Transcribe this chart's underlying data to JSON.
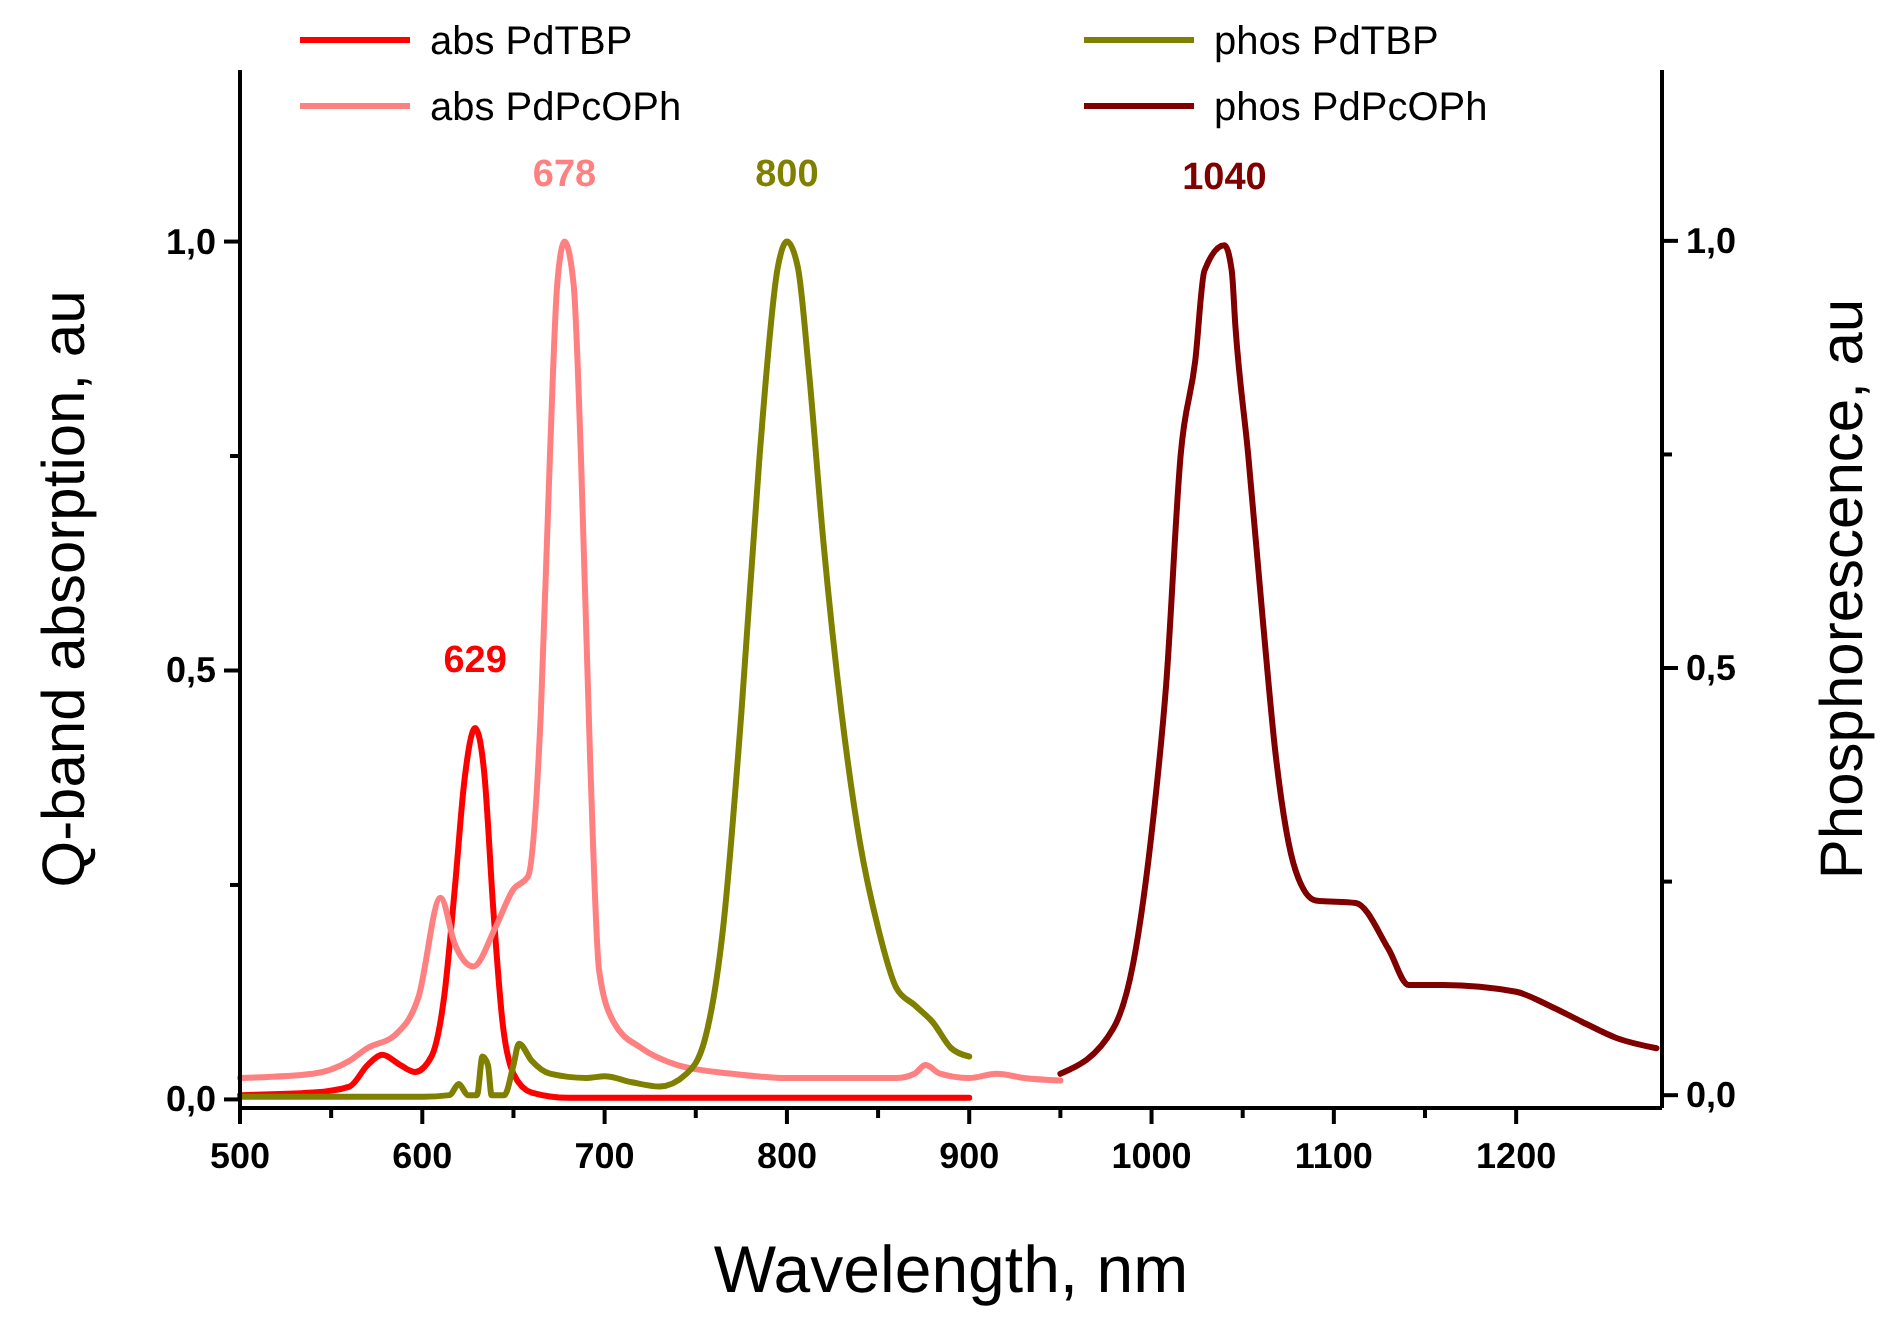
{
  "chart_data": {
    "type": "line",
    "xlabel": "Wavelength, nm",
    "ylabel": "Q-band absorption, au",
    "y2label": "Phosphorescence, au",
    "xlim": [
      500,
      1280
    ],
    "xticks": [
      500,
      600,
      700,
      800,
      900,
      1000,
      1100,
      1200
    ],
    "ylim": [
      -0.01,
      1.2
    ],
    "yticks": [
      {
        "value": 0,
        "label": "0,0"
      },
      {
        "value": 0.25,
        "label": null
      },
      {
        "value": 0.5,
        "label": "0,5"
      },
      {
        "value": 0.75,
        "label": null
      },
      {
        "value": 1,
        "label": "1,0"
      }
    ],
    "y2lim": [
      -0.015,
      1.2
    ],
    "y2ticks": [
      {
        "value": 0,
        "label": "0,0"
      },
      {
        "value": 0.25,
        "label": null
      },
      {
        "value": 0.5,
        "label": "0,5"
      },
      {
        "value": 0.75,
        "label": null
      },
      {
        "value": 1,
        "label": "1,0"
      }
    ],
    "grid": false,
    "legend": "top",
    "line_style": "solid",
    "marker": "none",
    "annotations": [
      {
        "text": "629",
        "x": 629,
        "y": 0.433
      },
      {
        "text": "678",
        "x": 678,
        "y": 1.0
      },
      {
        "text": "800",
        "x": 800,
        "y": 1.0
      },
      {
        "text": "1040",
        "x": 1040,
        "y": 0.995
      }
    ],
    "series": [
      {
        "name": "abs PdTBP",
        "color": "#ff0000",
        "x": [
          500,
          540,
          560,
          570,
          578,
          588,
          596,
          605,
          612,
          618,
          623,
          629,
          634,
          639,
          644,
          650,
          660,
          680,
          900
        ],
        "values": [
          0.005,
          0.008,
          0.015,
          0.04,
          0.052,
          0.04,
          0.032,
          0.05,
          0.12,
          0.25,
          0.37,
          0.433,
          0.38,
          0.22,
          0.09,
          0.03,
          0.008,
          0.002,
          0.002
        ]
      },
      {
        "name": "abs PdPcOPh",
        "color": "#ff8080",
        "x": [
          500,
          540,
          560,
          570,
          585,
          598,
          610,
          618,
          628,
          640,
          650,
          658,
          665,
          670,
          674,
          678,
          683,
          687,
          692,
          697,
          705,
          720,
          740,
          770,
          800,
          860,
          870,
          876,
          884,
          900,
          915,
          930,
          950
        ],
        "values": [
          0.025,
          0.03,
          0.045,
          0.06,
          0.075,
          0.12,
          0.235,
          0.18,
          0.155,
          0.2,
          0.245,
          0.26,
          0.45,
          0.75,
          0.95,
          1.0,
          0.95,
          0.75,
          0.4,
          0.15,
          0.09,
          0.06,
          0.04,
          0.03,
          0.025,
          0.025,
          0.03,
          0.04,
          0.03,
          0.025,
          0.03,
          0.025,
          0.022
        ]
      },
      {
        "name": "phos PdTBP",
        "color": "#808000",
        "x": [
          500,
          600,
          615,
          620,
          625,
          630,
          633,
          636,
          638,
          645,
          650,
          653,
          660,
          670,
          690,
          700,
          715,
          730,
          745,
          755,
          765,
          775,
          785,
          795,
          800,
          806,
          812,
          820,
          830,
          840,
          850,
          860,
          870,
          880,
          890,
          900
        ],
        "values": [
          0.003,
          0.003,
          0.005,
          0.018,
          0.005,
          0.005,
          0.05,
          0.04,
          0.005,
          0.005,
          0.04,
          0.065,
          0.045,
          0.03,
          0.025,
          0.027,
          0.02,
          0.015,
          0.03,
          0.07,
          0.2,
          0.45,
          0.75,
          0.97,
          1.0,
          0.97,
          0.85,
          0.65,
          0.45,
          0.3,
          0.2,
          0.13,
          0.11,
          0.09,
          0.06,
          0.05
        ]
      },
      {
        "name": "phos PdPcOPh",
        "color": "#800000",
        "axis": "y2",
        "x": [
          950,
          979,
          990,
          1001,
          1008,
          1016,
          1024,
          1029,
          1040,
          1044,
          1046,
          1053,
          1061,
          1068,
          1079,
          1090,
          1112,
          1130,
          1141,
          1160,
          1200,
          1218,
          1236,
          1255,
          1277
        ],
        "values": [
          0.025,
          0.078,
          0.155,
          0.325,
          0.48,
          0.75,
          0.86,
          0.965,
          0.995,
          0.965,
          0.9,
          0.75,
          0.557,
          0.4,
          0.263,
          0.228,
          0.225,
          0.171,
          0.129,
          0.129,
          0.121,
          0.105,
          0.086,
          0.067,
          0.055
        ]
      }
    ]
  }
}
